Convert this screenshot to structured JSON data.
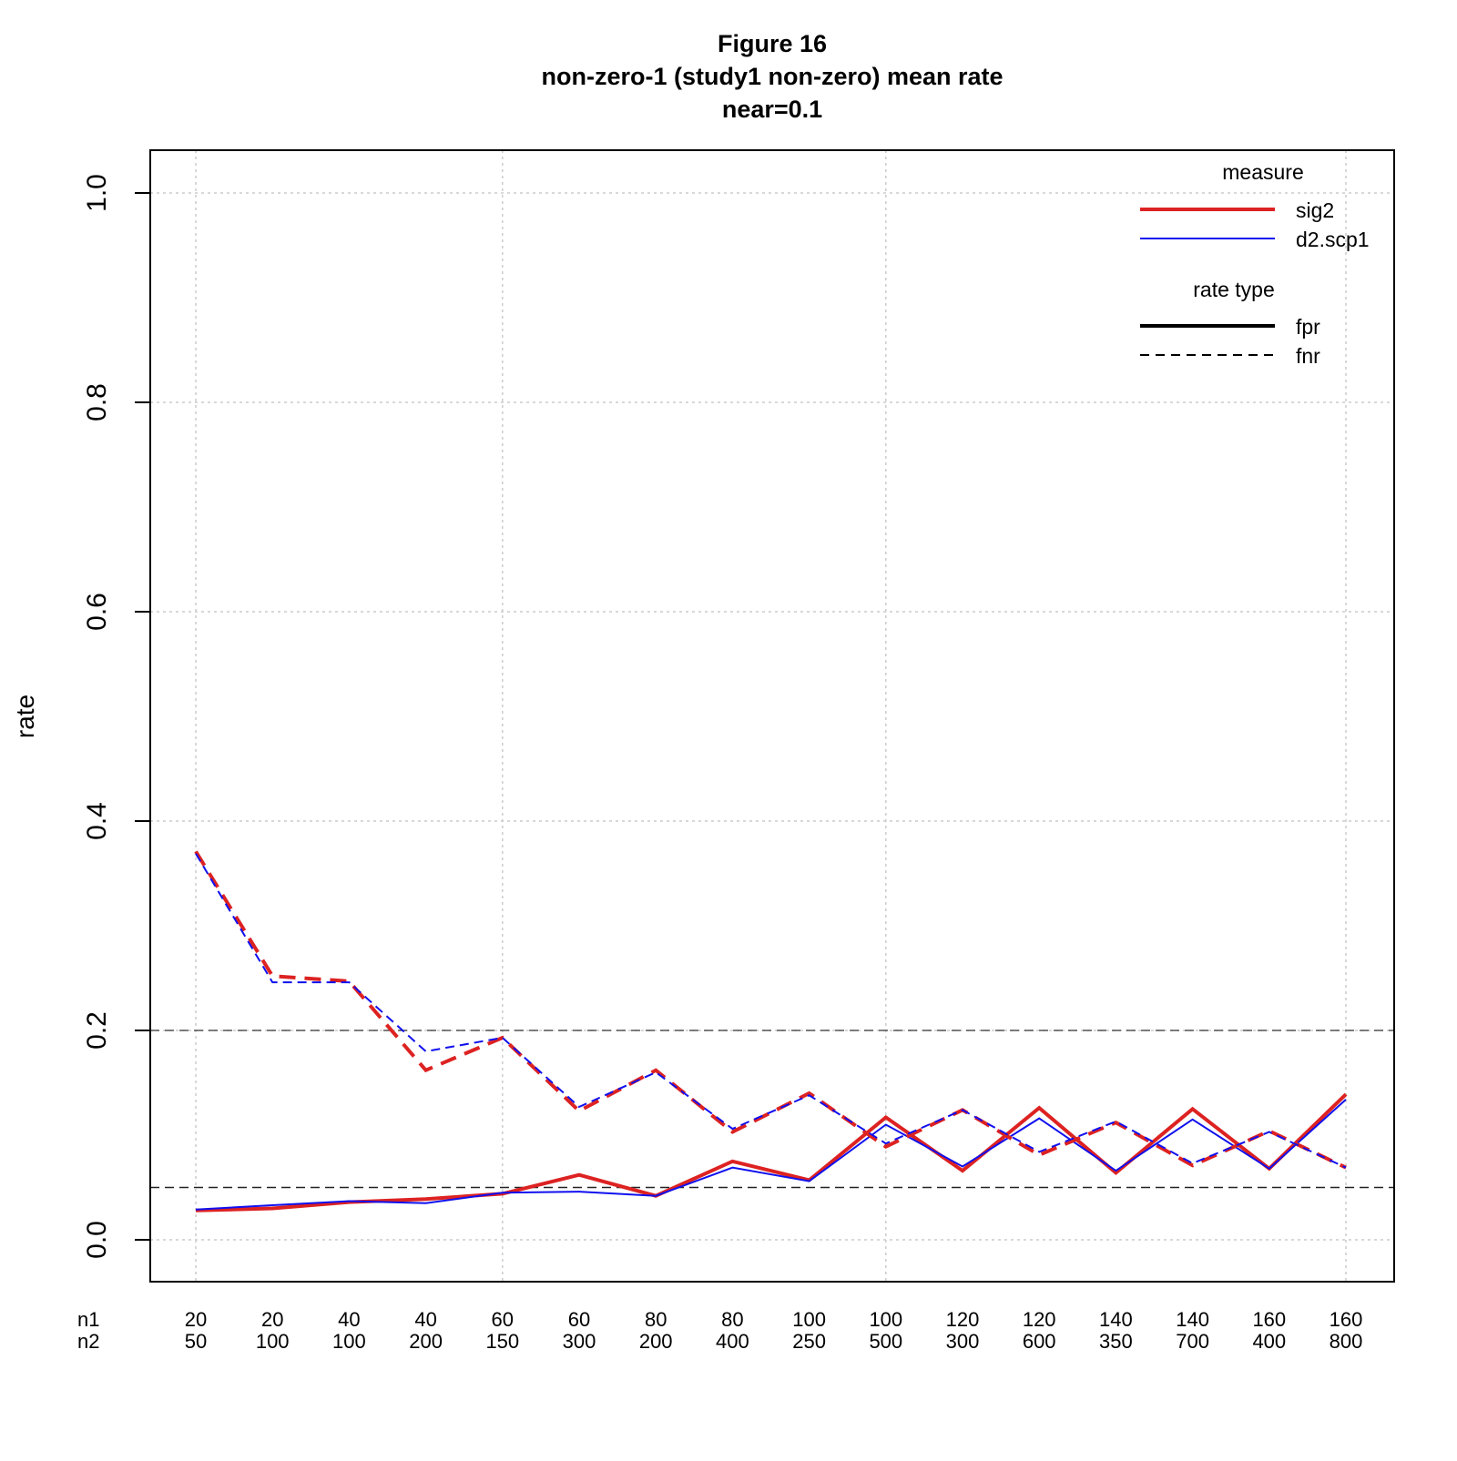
{
  "title": {
    "line1": "Figure 16",
    "line2": "non-zero-1 (study1 non-zero) mean rate",
    "line3": "near=0.1"
  },
  "colors": {
    "sig2": "#dd2222",
    "d2_scp1": "#1010ee",
    "grid": "#cccccc",
    "refline": "#555555"
  },
  "legend": {
    "measure_title": "measure",
    "measure_items": [
      "sig2",
      "d2.scp1"
    ],
    "ratetype_title": "rate type",
    "ratetype_items": [
      "fpr",
      "fnr"
    ],
    "placement": "top-right"
  },
  "chart_data": {
    "type": "line",
    "title": "Figure 16 non-zero-1 (study1 non-zero) mean rate near=0.1",
    "xlabel": "",
    "ylabel": "rate",
    "ylim": [
      0,
      1
    ],
    "yticks": [
      "0.0",
      "0.2",
      "0.4",
      "0.6",
      "0.8",
      "1.0"
    ],
    "x_row_labels": [
      "n1",
      "n2"
    ],
    "n1": [
      "20",
      "20",
      "40",
      "40",
      "60",
      "60",
      "80",
      "80",
      "100",
      "100",
      "120",
      "120",
      "140",
      "140",
      "160",
      "160"
    ],
    "n2": [
      "50",
      "100",
      "100",
      "200",
      "150",
      "300",
      "200",
      "400",
      "250",
      "500",
      "300",
      "600",
      "350",
      "700",
      "400",
      "800"
    ],
    "grid": true,
    "reference_lines": [
      0.2,
      0.05
    ],
    "series": [
      {
        "name": "sig2 fpr",
        "measure": "sig2",
        "rate_type": "fpr",
        "values": [
          0.028,
          0.03,
          0.036,
          0.039,
          0.044,
          0.062,
          0.042,
          0.075,
          0.057,
          0.117,
          0.066,
          0.126,
          0.064,
          0.125,
          0.068,
          0.139
        ]
      },
      {
        "name": "d2.scp1 fpr",
        "measure": "d2.scp1",
        "rate_type": "fpr",
        "values": [
          0.029,
          0.033,
          0.037,
          0.035,
          0.045,
          0.046,
          0.042,
          0.069,
          0.056,
          0.11,
          0.07,
          0.116,
          0.066,
          0.115,
          0.068,
          0.134
        ]
      },
      {
        "name": "sig2 fnr",
        "measure": "sig2",
        "rate_type": "fnr",
        "values": [
          0.371,
          0.252,
          0.247,
          0.162,
          0.193,
          0.123,
          0.162,
          0.103,
          0.14,
          0.089,
          0.124,
          0.081,
          0.112,
          0.071,
          0.104,
          0.069
        ]
      },
      {
        "name": "d2.scp1 fnr",
        "measure": "d2.scp1",
        "rate_type": "fnr",
        "values": [
          0.369,
          0.246,
          0.246,
          0.18,
          0.193,
          0.127,
          0.16,
          0.106,
          0.138,
          0.092,
          0.124,
          0.084,
          0.113,
          0.073,
          0.103,
          0.069
        ]
      }
    ]
  }
}
